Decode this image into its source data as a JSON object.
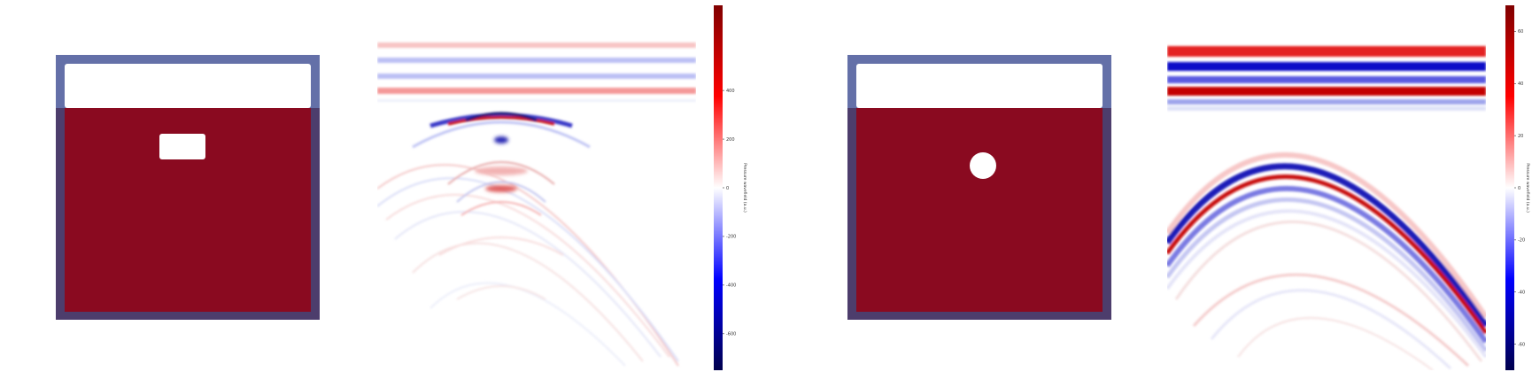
{
  "figures": [
    {
      "model": {
        "void_shape": "rectangle",
        "colors": {
          "frame": "#6470a8",
          "frame_lower": "#4d3d6c",
          "medium": "#8a0a20",
          "void": "#ffffff"
        }
      },
      "colorbar": {
        "label": "Pressure wavefield (a.u.)",
        "ticks": [
          {
            "value": 400,
            "label": "400"
          },
          {
            "value": 200,
            "label": "200"
          },
          {
            "value": 0,
            "label": "0"
          },
          {
            "value": -200,
            "label": "-200"
          },
          {
            "value": -400,
            "label": "-400"
          },
          {
            "value": -600,
            "label": "-600"
          }
        ],
        "range": [
          -750,
          750
        ],
        "colormap": "seismic"
      }
    },
    {
      "model": {
        "void_shape": "circle",
        "colors": {
          "frame": "#6470a8",
          "frame_lower": "#4d3d6c",
          "medium": "#8a0a20",
          "void": "#ffffff"
        }
      },
      "colorbar": {
        "label": "Pressure wavefield (a.u.)",
        "ticks": [
          {
            "value": 60,
            "label": "60"
          },
          {
            "value": 40,
            "label": "40"
          },
          {
            "value": 20,
            "label": "20"
          },
          {
            "value": 0,
            "label": "0"
          },
          {
            "value": -20,
            "label": "-20"
          },
          {
            "value": -40,
            "label": "-40"
          },
          {
            "value": -60,
            "label": "-60"
          }
        ],
        "range": [
          -70,
          70
        ],
        "colormap": "seismic"
      }
    }
  ]
}
